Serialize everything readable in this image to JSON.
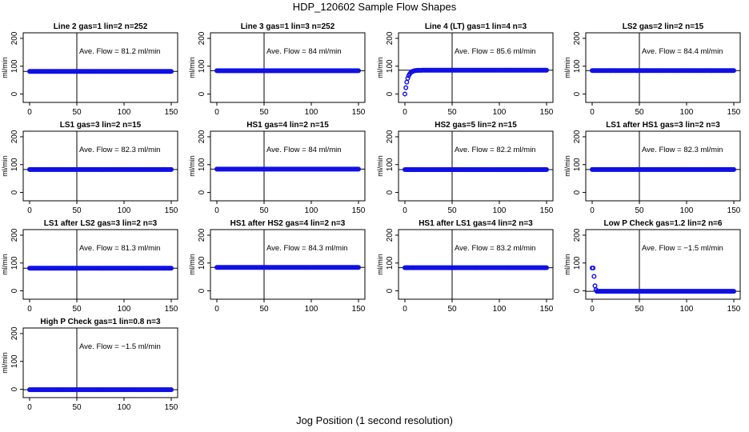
{
  "chart_data": {
    "type": "scatter",
    "title": "HDP_120602  Sample Flow Shapes",
    "xlabel": "Jog Position (1 second resolution)",
    "ylabel": "ml/min",
    "xlim": [
      0,
      150
    ],
    "ylim": [
      -30,
      220
    ],
    "x_ticks": [
      0,
      50,
      100,
      150
    ],
    "y_ticks": [
      0,
      100,
      200
    ],
    "vline_x": 50,
    "annotation_prefix": "Ave. Flow =",
    "panels": [
      {
        "title": "Line 2 gas=1 lin=2 n=252",
        "ave_flow": "81.2",
        "unit": "ml/min",
        "shape": "flat",
        "level": 81.2
      },
      {
        "title": "Line 3 gas=1 lin=3 n=252",
        "ave_flow": "84",
        "unit": "ml/min",
        "shape": "flat",
        "level": 84
      },
      {
        "title": "Line 4 (LT) gas=1 lin=4 n=3",
        "ave_flow": "85.6",
        "unit": "ml/min",
        "shape": "rise",
        "level": 85.6
      },
      {
        "title": "LS2 gas=2 lin=2 n=15",
        "ave_flow": "84.4",
        "unit": "ml/min",
        "shape": "flat",
        "level": 84.4
      },
      {
        "title": "LS1 gas=3 lin=2 n=15",
        "ave_flow": "82.3",
        "unit": "ml/min",
        "shape": "flat",
        "level": 82.3
      },
      {
        "title": "HS1 gas=4 lin=2 n=15",
        "ave_flow": "84",
        "unit": "ml/min",
        "shape": "flat",
        "level": 84
      },
      {
        "title": "HS2 gas=5 lin=2 n=15",
        "ave_flow": "82.2",
        "unit": "ml/min",
        "shape": "flat",
        "level": 82.2
      },
      {
        "title": "LS1 after HS1 gas=3 lin=2 n=3",
        "ave_flow": "82.3",
        "unit": "ml/min",
        "shape": "flat",
        "level": 82.3
      },
      {
        "title": "LS1 after LS2 gas=3 lin=2 n=3",
        "ave_flow": "81.3",
        "unit": "ml/min",
        "shape": "flat",
        "level": 81.3
      },
      {
        "title": "HS1 after HS2 gas=4 lin=2 n=3",
        "ave_flow": "84.3",
        "unit": "ml/min",
        "shape": "flat",
        "level": 84.3
      },
      {
        "title": "HS1 after LS1 gas=4 lin=2 n=3",
        "ave_flow": "83.2",
        "unit": "ml/min",
        "shape": "flat",
        "level": 83.2
      },
      {
        "title": "Low P Check gas=1.2 lin=2 n=6",
        "ave_flow": "−1.5",
        "unit": "ml/min",
        "shape": "drop",
        "level": -1.5
      },
      {
        "title": "High P Check gas=1 lin=0.8 n=3",
        "ave_flow": "−1.5",
        "unit": "ml/min",
        "shape": "flat",
        "level": -1.5
      }
    ]
  }
}
